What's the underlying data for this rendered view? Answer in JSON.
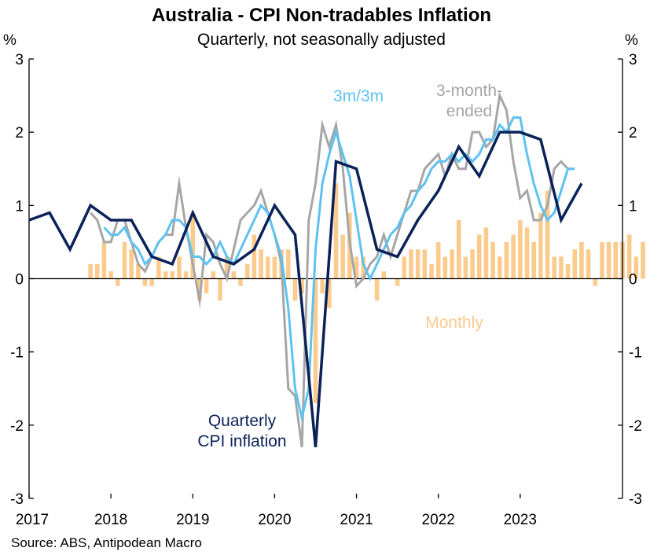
{
  "chart_data": {
    "type": "bar+line",
    "title": "Australia - CPI Non-tradables Inflation",
    "subtitle": "Quarterly, not seasonally adjusted",
    "unit_left": "%",
    "unit_right": "%",
    "source": "Source: ABS, Antipodean Macro",
    "ylim": [
      -3,
      3
    ],
    "yticks": [
      -3,
      -2,
      -1,
      0,
      1,
      2,
      3
    ],
    "xlim": [
      2017.0,
      2024.25
    ],
    "xticks": [
      {
        "label": "2017",
        "value": 2017.0
      },
      {
        "label": "2018",
        "value": 2018.0
      },
      {
        "label": "2019",
        "value": 2019.0
      },
      {
        "label": "2020",
        "value": 2020.0
      },
      {
        "label": "2021",
        "value": 2021.0
      },
      {
        "label": "2022",
        "value": 2022.0
      },
      {
        "label": "2023",
        "value": 2023.0
      }
    ],
    "annotations": {
      "monthly": "Monthly",
      "m3m3": "3m/3m",
      "three_month_ended_1": "3-month-",
      "three_month_ended_2": "ended",
      "quarterly_1": "Quarterly",
      "quarterly_2": "CPI inflation"
    },
    "colors": {
      "monthly": "#FBCB8E",
      "m3m3": "#5EC2F0",
      "three_month_ended": "#A6A6A6",
      "quarterly": "#0B2259",
      "axis": "#000000"
    },
    "series": [
      {
        "name": "Monthly",
        "kind": "bar",
        "start": "2017-10",
        "values": [
          0.2,
          0.2,
          0.5,
          0.1,
          -0.1,
          0.5,
          0.4,
          0.2,
          -0.1,
          -0.1,
          0.3,
          0.1,
          0.1,
          0.3,
          0.1,
          0.9,
          -0.3,
          -0.2,
          0.1,
          -0.3,
          0.3,
          0.1,
          -0.1,
          0.2,
          0.6,
          0.4,
          0.3,
          0.3,
          0.4,
          0.4,
          -0.3,
          -0.2,
          0.0,
          -1.7,
          -0.2,
          -0.4,
          1.3,
          0.6,
          0.9,
          0.3,
          0.3,
          0.0,
          -0.3,
          0.1,
          0.0,
          -0.1,
          0.3,
          0.4,
          0.4,
          0.4,
          0.2,
          0.5,
          0.3,
          0.4,
          0.8,
          0.3,
          0.4,
          0.6,
          0.7,
          0.5,
          0.3,
          0.5,
          0.6,
          0.8,
          0.7,
          0.5,
          0.9,
          1.2,
          0.3,
          0.3,
          0.2,
          0.4,
          0.5,
          0.4,
          -0.1,
          0.5,
          0.5,
          0.5,
          0.5,
          0.6,
          0.3,
          0.5
        ]
      },
      {
        "name": "3-month-ended",
        "kind": "line",
        "start": "2017-10",
        "values": [
          0.9,
          0.8,
          0.5,
          0.5,
          0.8,
          0.8,
          0.5,
          0.2,
          0.1,
          0.3,
          0.5,
          0.6,
          0.6,
          1.3,
          0.7,
          0.2,
          -0.3,
          0.6,
          0.5,
          0.2,
          0.0,
          0.4,
          0.8,
          0.9,
          1.0,
          1.2,
          0.9,
          0.6,
          0.2,
          -1.5,
          -1.6,
          -2.3,
          0.8,
          1.3,
          2.1,
          1.8,
          2.1,
          1.5,
          0.5,
          -0.1,
          0.0,
          0.2,
          0.3,
          0.6,
          0.3,
          0.6,
          0.9,
          1.2,
          1.2,
          1.5,
          1.6,
          1.7,
          1.4,
          1.7,
          1.5,
          1.5,
          2.0,
          2.0,
          1.8,
          1.9,
          2.5,
          2.3,
          1.6,
          1.1,
          1.2,
          0.8,
          0.8,
          1.0,
          1.5,
          1.6,
          1.5,
          1.5
        ]
      },
      {
        "name": "3m/3m",
        "kind": "line",
        "start": "2017-12",
        "values": [
          0.7,
          0.6,
          0.6,
          0.7,
          0.5,
          0.4,
          0.2,
          0.3,
          0.5,
          0.6,
          0.8,
          0.8,
          0.7,
          0.3,
          0.3,
          0.2,
          0.3,
          0.5,
          0.3,
          0.2,
          0.4,
          0.6,
          0.8,
          1.0,
          0.9,
          0.6,
          0.3,
          -0.4,
          -1.5,
          -1.9,
          -1.5,
          0.4,
          1.3,
          1.7,
          2.0,
          1.7,
          1.4,
          0.8,
          0.2,
          0.0,
          0.2,
          0.4,
          0.6,
          0.7,
          0.9,
          1.0,
          1.2,
          1.3,
          1.5,
          1.6,
          1.6,
          1.7,
          1.6,
          1.7,
          1.6,
          1.7,
          1.9,
          1.9,
          2.1,
          2.0,
          2.2,
          2.2,
          1.7,
          1.3,
          1.0,
          0.8,
          0.9,
          1.2,
          1.5,
          1.5
        ]
      },
      {
        "name": "Quarterly CPI inflation",
        "kind": "line",
        "x": [
          2017.0,
          2017.25,
          2017.5,
          2017.75,
          2018.0,
          2018.25,
          2018.5,
          2018.75,
          2019.0,
          2019.25,
          2019.5,
          2019.75,
          2020.0,
          2020.25,
          2020.5,
          2020.75,
          2021.0,
          2021.25,
          2021.5,
          2021.75,
          2022.0,
          2022.25,
          2022.5,
          2022.75,
          2023.0,
          2023.25,
          2023.5,
          2023.75
        ],
        "values": [
          0.8,
          0.9,
          0.4,
          1.0,
          0.8,
          0.8,
          0.3,
          0.2,
          0.9,
          0.3,
          0.2,
          0.4,
          1.0,
          0.6,
          -2.3,
          1.6,
          1.5,
          0.4,
          0.3,
          0.8,
          1.2,
          1.8,
          1.4,
          2.0,
          2.0,
          1.9,
          0.8,
          1.3
        ]
      }
    ]
  }
}
